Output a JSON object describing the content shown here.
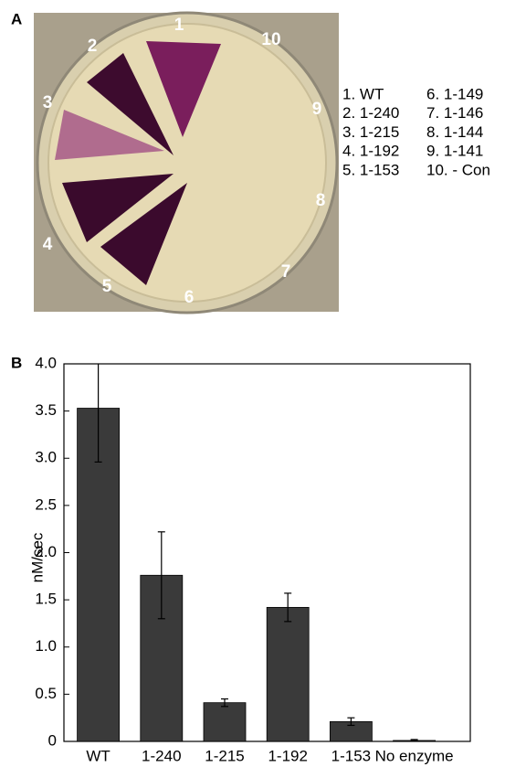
{
  "panel_a": {
    "label": "A",
    "plate_labels": [
      "1",
      "2",
      "3",
      "4",
      "5",
      "6",
      "7",
      "8",
      "9",
      "10"
    ],
    "legend": [
      "1. WT",
      "2. 1-240",
      "3. 1-215",
      "4. 1-192",
      "5. 1-153",
      "6. 1-149",
      "7. 1-146",
      "8. 1-144",
      "9. 1-141",
      "10. - Con"
    ]
  },
  "chart_data": {
    "type": "bar",
    "panel_label": "B",
    "y_label": "nM/sec",
    "categories": [
      "WT",
      "1-240",
      "1-215",
      "1-192",
      "1-153",
      "No enzyme"
    ],
    "values": [
      3.53,
      1.76,
      0.41,
      1.42,
      0.21,
      0.01
    ],
    "errors": [
      0.57,
      0.46,
      0.04,
      0.15,
      0.04,
      0.01
    ],
    "color": "#3a3a3a",
    "ylim": [
      0,
      4
    ],
    "yticks": [
      0,
      0.5,
      {
        "value": 1,
        "label": "1.0"
      },
      1.5,
      {
        "value": 2,
        "label": "2.0"
      },
      2.5,
      {
        "value": 3,
        "label": "3.0"
      },
      3.5,
      {
        "value": 4,
        "label": "4.0"
      }
    ]
  }
}
